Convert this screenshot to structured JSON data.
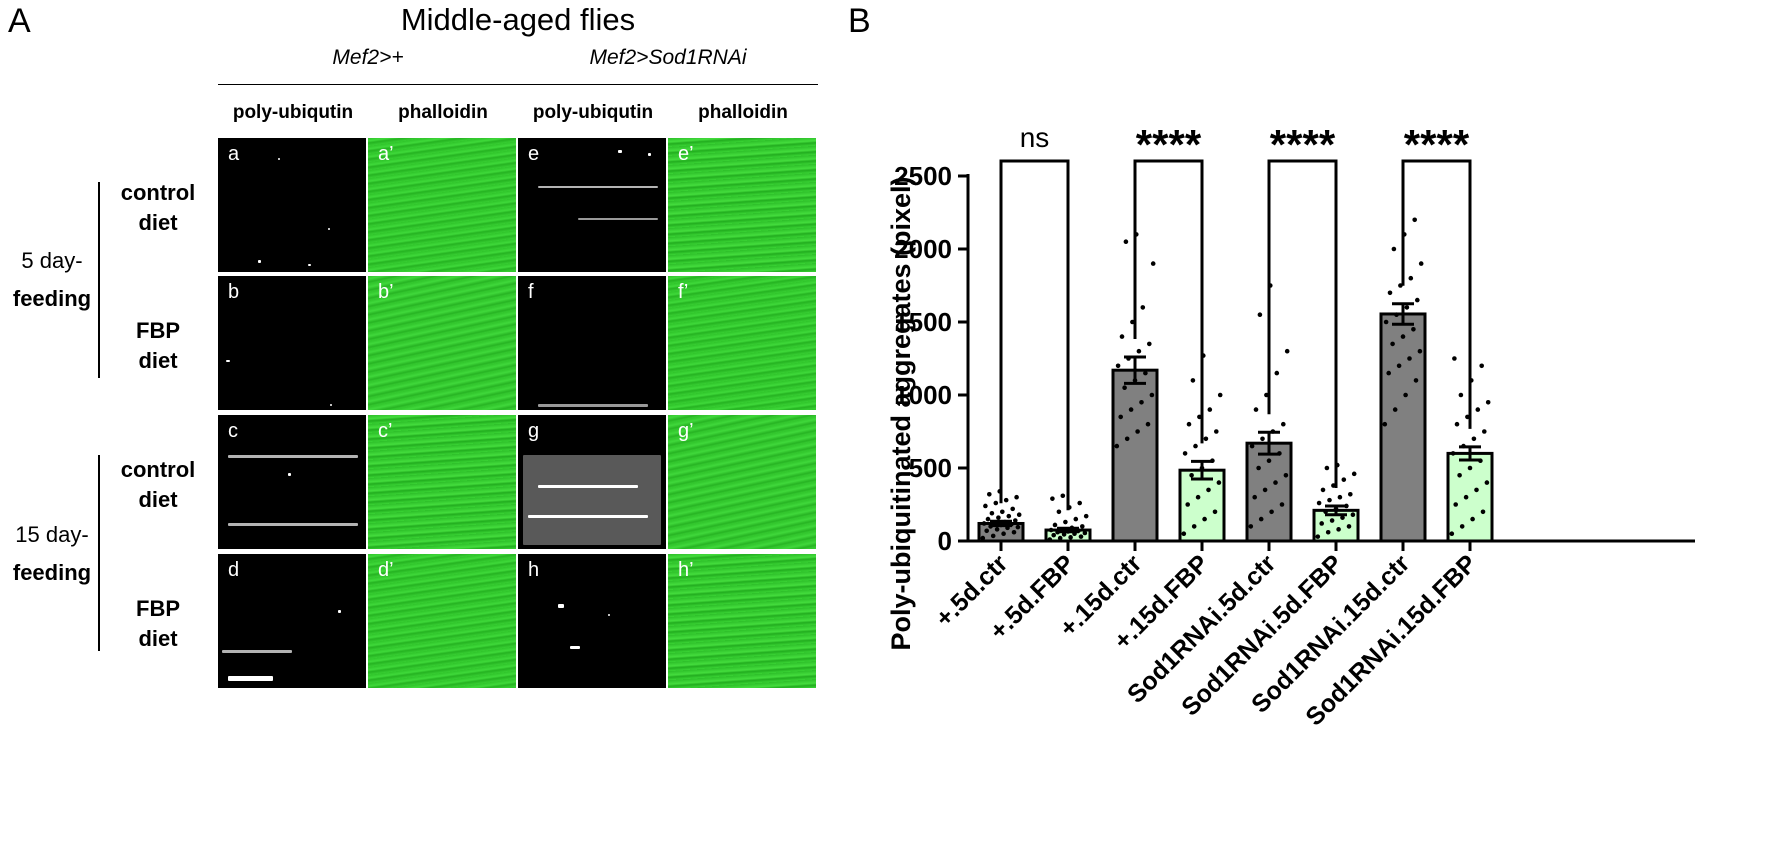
{
  "panel_a": {
    "letter": "A",
    "title": "Middle-aged flies",
    "genotype_ctrl": "Mef2>+",
    "genotype_rnai": "Mef2>Sod1RNAi",
    "stains": [
      "poly-ubiqutin",
      "phalloidin",
      "poly-ubiqutin",
      "phalloidin"
    ],
    "feeding_5": {
      "line1": "5 day-",
      "line2": "feeding"
    },
    "feeding_15": {
      "line1": "15 day-",
      "line2": "feeding"
    },
    "rows": [
      {
        "line1": "control",
        "line2": "diet",
        "tags": [
          "a",
          "a’",
          "e",
          "e’"
        ]
      },
      {
        "line1": "FBP",
        "line2": "diet",
        "tags": [
          "b",
          "b’",
          "f",
          "f’"
        ]
      },
      {
        "line1": "control",
        "line2": "diet",
        "tags": [
          "c",
          "c’",
          "g",
          "g’"
        ]
      },
      {
        "line1": "FBP",
        "line2": "diet",
        "tags": [
          "d",
          "d’",
          "h",
          "h’"
        ]
      }
    ],
    "colors": {
      "stain_green": "#35cc30",
      "stain_dark": "#000000"
    }
  },
  "panel_b": {
    "letter": "B"
  },
  "chart_data": {
    "type": "bar",
    "ylabel": "Poly-ubiquitinated aggregates (pixel)",
    "ylim": [
      0,
      2500
    ],
    "yticks": [
      0,
      500,
      1000,
      1500,
      2000,
      2500
    ],
    "categories": [
      "+.5d.ctr",
      "+.5d.FBP",
      "+.15d.ctr",
      "+.15d.FBP",
      "Sod1RNAi.5d.ctr",
      "Sod1RNAi.5d.FBP",
      "Sod1RNAi.15d.ctr",
      "Sod1RNAi.15d.FBP"
    ],
    "values": [
      120,
      75,
      1170,
      485,
      670,
      210,
      1555,
      600
    ],
    "errors": [
      15,
      12,
      90,
      60,
      75,
      30,
      70,
      45
    ],
    "bar_colors": [
      "#808080",
      "#ccffcc",
      "#808080",
      "#ccffcc",
      "#808080",
      "#ccffcc",
      "#808080",
      "#ccffcc"
    ],
    "points": [
      [
        20,
        35,
        50,
        60,
        70,
        80,
        90,
        95,
        100,
        110,
        115,
        120,
        125,
        130,
        140,
        150,
        160,
        170,
        180,
        190,
        200,
        220,
        240,
        260,
        280,
        300,
        320,
        340
      ],
      [
        10,
        20,
        25,
        30,
        40,
        45,
        50,
        55,
        60,
        65,
        70,
        75,
        80,
        90,
        100,
        110,
        130,
        150,
        170,
        200,
        230,
        260,
        290,
        310
      ],
      [
        650,
        700,
        750,
        800,
        850,
        900,
        950,
        1000,
        1050,
        1100,
        1150,
        1200,
        1250,
        1300,
        1350,
        1400,
        1500,
        1600,
        1900,
        2050,
        2100
      ],
      [
        50,
        100,
        150,
        200,
        250,
        300,
        350,
        400,
        450,
        500,
        550,
        600,
        650,
        700,
        750,
        800,
        850,
        900,
        1000,
        1100,
        1270
      ],
      [
        100,
        150,
        200,
        250,
        300,
        350,
        400,
        450,
        500,
        550,
        600,
        650,
        700,
        750,
        800,
        900,
        1000,
        1150,
        1300,
        1550,
        1750
      ],
      [
        30,
        60,
        80,
        100,
        120,
        140,
        160,
        180,
        200,
        220,
        240,
        260,
        280,
        300,
        320,
        350,
        380,
        420,
        460,
        500,
        520
      ],
      [
        800,
        900,
        1000,
        1100,
        1150,
        1200,
        1250,
        1300,
        1350,
        1400,
        1450,
        1500,
        1550,
        1600,
        1650,
        1700,
        1750,
        1800,
        1900,
        2000,
        2100,
        2200
      ],
      [
        50,
        100,
        150,
        200,
        250,
        300,
        350,
        400,
        450,
        500,
        550,
        600,
        650,
        700,
        750,
        800,
        850,
        900,
        950,
        1000,
        1100,
        1200,
        1250
      ]
    ],
    "comparisons": [
      {
        "from": 0,
        "to": 1,
        "label": "ns"
      },
      {
        "from": 2,
        "to": 3,
        "label": "****"
      },
      {
        "from": 4,
        "to": 5,
        "label": "****"
      },
      {
        "from": 6,
        "to": 7,
        "label": "****"
      }
    ]
  }
}
